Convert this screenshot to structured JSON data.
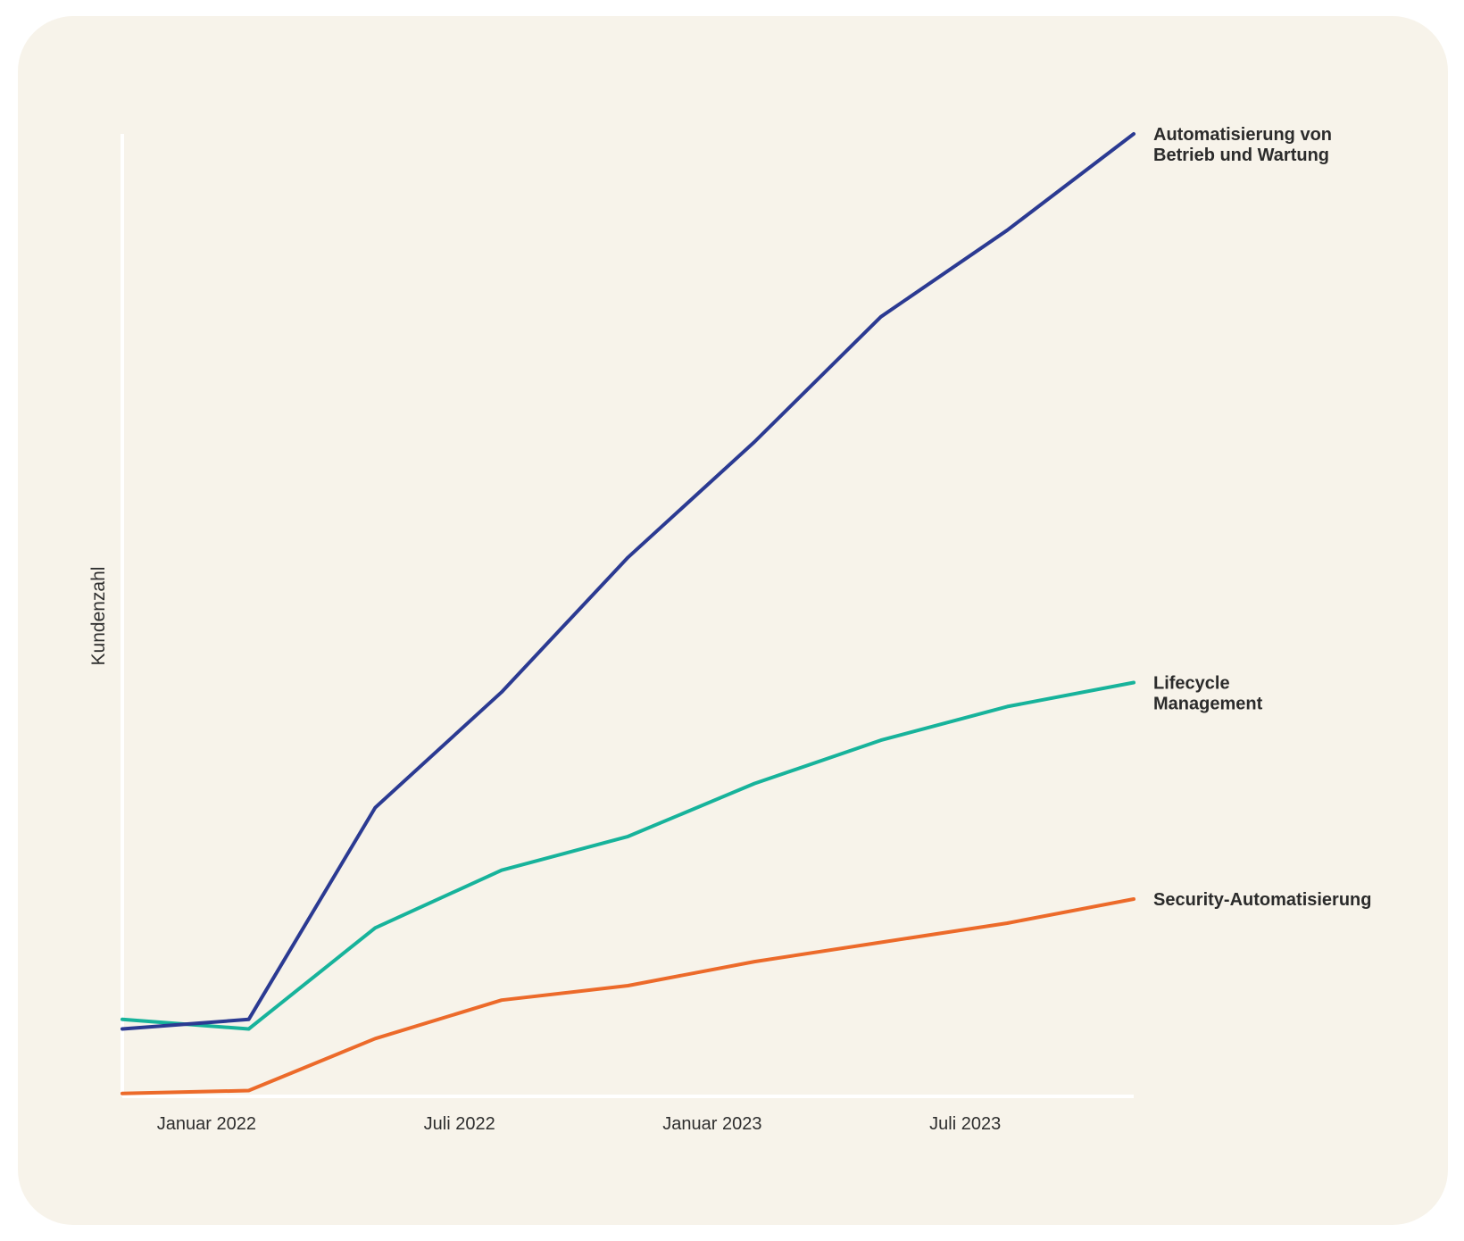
{
  "chart_data": {
    "type": "line",
    "title": "",
    "xlabel": "",
    "ylabel": "Kundenzahl",
    "x": [
      "2021-11",
      "2022-02",
      "2022-05",
      "2022-08",
      "2022-11",
      "2023-02",
      "2023-05",
      "2023-08",
      "2023-11"
    ],
    "x_tick_labels": [
      "Januar 2022",
      "Juli 2022",
      "Januar 2023",
      "Juli 2023"
    ],
    "y_ticks_shown": false,
    "ylim": [
      0,
      100
    ],
    "grid": false,
    "legend": "direct labels at line ends (right)",
    "series": [
      {
        "name": "Automatisierung von Betrieb und Wartung",
        "name_lines": [
          "Automatisierung von",
          "Betrieb und Wartung"
        ],
        "color": "#2b3a92",
        "values": [
          7,
          8,
          30,
          42,
          56,
          68,
          81,
          90,
          100
        ]
      },
      {
        "name": "Lifecycle Management",
        "name_lines": [
          "Lifecycle",
          "Management"
        ],
        "color": "#17b39b",
        "values": [
          8,
          7,
          17.5,
          23.5,
          27,
          32.5,
          37,
          40.5,
          43
        ]
      },
      {
        "name": "Security-Automatisierung",
        "name_lines": [
          "Security-Automatisierung"
        ],
        "color": "#ec6a2a",
        "values": [
          0.3,
          0.6,
          6,
          10,
          11.5,
          14,
          16,
          18,
          20.5
        ]
      }
    ]
  }
}
